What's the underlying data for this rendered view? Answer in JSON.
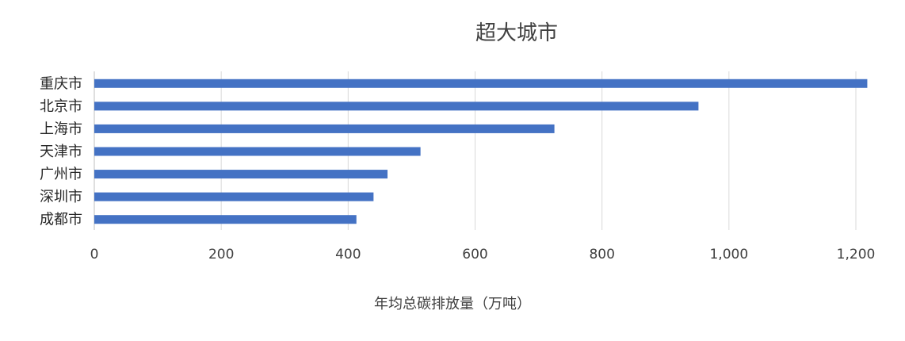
{
  "chart_data": {
    "type": "bar",
    "orientation": "horizontal",
    "title": "超大城市",
    "xlabel": "年均总碳排放量（万吨）",
    "ylabel": "",
    "categories": [
      "重庆市",
      "北京市",
      "上海市",
      "天津市",
      "广州市",
      "深圳市",
      "成都市"
    ],
    "values": [
      1218,
      952,
      725,
      514,
      462,
      440,
      413
    ],
    "xlim": [
      0,
      1200
    ],
    "xticks": [
      0,
      200,
      400,
      600,
      800,
      1000,
      1200
    ],
    "xtick_labels": [
      "0",
      "200",
      "400",
      "600",
      "800",
      "1,000",
      "1,200"
    ],
    "grid": true,
    "legend": "none",
    "colors": {
      "bar": "#4472C4"
    }
  }
}
